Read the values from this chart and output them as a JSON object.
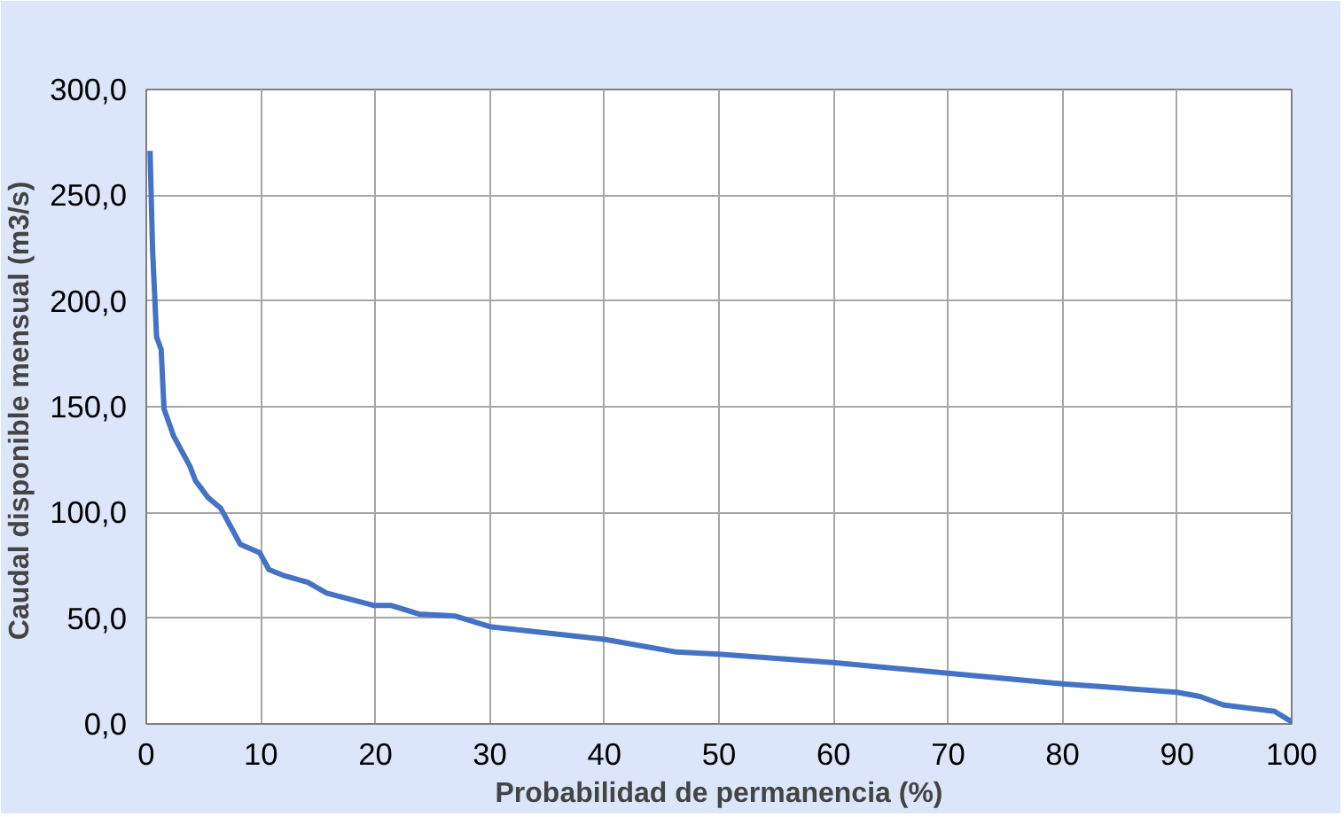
{
  "chart_data": {
    "type": "line",
    "xlabel": "Probabilidad de permanencia (%)",
    "ylabel": "Caudal disponible  mensual (m3/s)",
    "x": [
      0.33,
      0.55,
      0.9,
      1.3,
      1.55,
      2.4,
      3.8,
      4.3,
      5.4,
      6.5,
      7.4,
      8.2,
      9.9,
      10.7,
      12.1,
      14.1,
      15.7,
      19.9,
      21.4,
      23.8,
      27,
      30,
      40,
      46.3,
      50,
      60,
      70,
      80,
      90,
      92,
      94,
      98.5,
      100
    ],
    "series": [
      {
        "color": "#4472c4",
        "values": [
          271,
          224,
          183,
          177,
          149,
          136,
          122,
          115,
          107,
          102,
          93,
          85,
          81,
          73,
          70,
          67,
          62,
          56,
          56,
          52,
          51,
          46,
          40,
          34,
          33,
          29,
          24,
          19,
          15,
          13,
          9,
          6,
          1
        ]
      }
    ],
    "xlim": [
      0,
      100
    ],
    "xticks": [
      0,
      10,
      20,
      30,
      40,
      50,
      60,
      70,
      80,
      90,
      100
    ],
    "ylim": [
      0,
      300
    ],
    "yticks": [
      {
        "value": 0,
        "label": "0,0"
      },
      {
        "value": 50,
        "label": "50,0"
      },
      {
        "value": 100,
        "label": "100,0"
      },
      {
        "value": 150,
        "label": "150,0"
      },
      {
        "value": 200,
        "label": "200,0"
      },
      {
        "value": 250,
        "label": "250,0"
      },
      {
        "value": 300,
        "label": "300,0"
      }
    ],
    "grid": true,
    "marker": "none",
    "line_style": "solid"
  }
}
